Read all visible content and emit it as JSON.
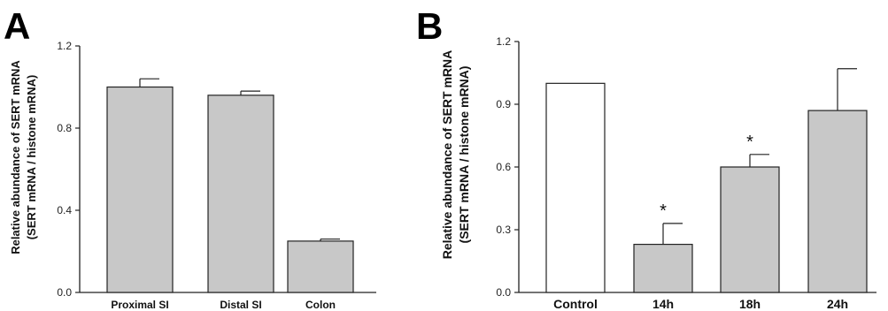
{
  "chart_data": [
    {
      "panel": "A",
      "type": "bar",
      "ylabel_line1": "Relative abundance of SERT mRNA",
      "ylabel_line2": "(SERT mRNA / histone mRNA)",
      "categories": [
        "Proximal SI",
        "Distal SI",
        "Colon"
      ],
      "values": [
        1.0,
        0.96,
        0.25
      ],
      "errors": [
        0.04,
        0.02,
        0.01
      ],
      "bar_colors": [
        "#c8c8c8",
        "#c8c8c8",
        "#c8c8c8"
      ],
      "ylim": [
        0,
        1.2
      ],
      "yticks": [
        0.0,
        0.4,
        0.8,
        1.2
      ],
      "ytick_labels": [
        "0.0",
        "0.4",
        "0.8",
        "1.2"
      ],
      "grid": false
    },
    {
      "panel": "B",
      "type": "bar",
      "ylabel_line1": "Relative abundance of SERT mRNA",
      "ylabel_line2": "(SERT mRNA / histone mRNA)",
      "categories": [
        "Control",
        "14h",
        "18h",
        "24h"
      ],
      "values": [
        1.0,
        0.23,
        0.6,
        0.87
      ],
      "errors": [
        0,
        0.1,
        0.06,
        0.2
      ],
      "significance": [
        "",
        "*",
        "*",
        ""
      ],
      "bar_colors": [
        "#ffffff",
        "#c8c8c8",
        "#c8c8c8",
        "#c8c8c8"
      ],
      "ylim": [
        0,
        1.2
      ],
      "yticks": [
        0.0,
        0.3,
        0.6,
        0.9,
        1.2
      ],
      "ytick_labels": [
        "0.0",
        "0.3",
        "0.6",
        "0.9",
        "1.2"
      ],
      "grid": false
    }
  ]
}
